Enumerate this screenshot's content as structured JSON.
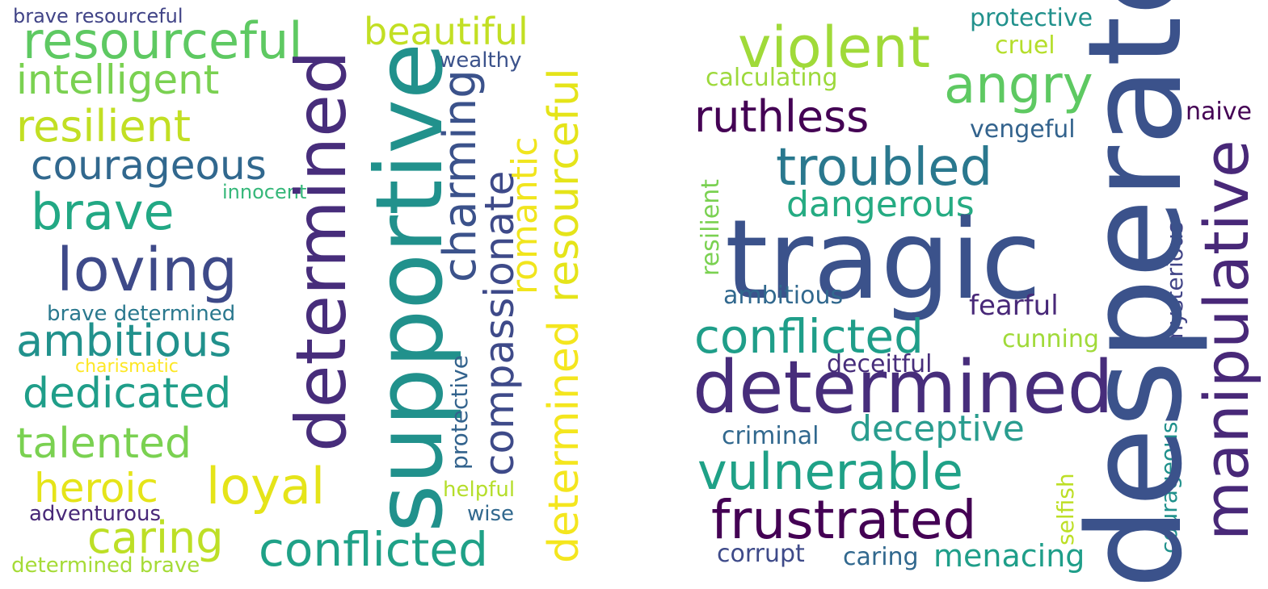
{
  "left_cloud": {
    "words": [
      {
        "text": "brave resourceful",
        "color": "#414487"
      },
      {
        "text": "resourceful",
        "color": "#5ec962"
      },
      {
        "text": "beautiful",
        "color": "#c2df23"
      },
      {
        "text": "wealthy",
        "color": "#3b528b"
      },
      {
        "text": "intelligent",
        "color": "#7ad151"
      },
      {
        "text": "resilient",
        "color": "#c2df23"
      },
      {
        "text": "courageous",
        "color": "#31688e"
      },
      {
        "text": "innocent",
        "color": "#35b779"
      },
      {
        "text": "brave",
        "color": "#22a884"
      },
      {
        "text": "loving",
        "color": "#3e4a89"
      },
      {
        "text": "brave determined",
        "color": "#2a788e"
      },
      {
        "text": "ambitious",
        "color": "#21918c"
      },
      {
        "text": "charismatic",
        "color": "#fde725"
      },
      {
        "text": "dedicated",
        "color": "#1f9e89"
      },
      {
        "text": "talented",
        "color": "#7ad151"
      },
      {
        "text": "heroic",
        "color": "#e5e419"
      },
      {
        "text": "loyal",
        "color": "#e5e419"
      },
      {
        "text": "adventurous",
        "color": "#482878"
      },
      {
        "text": "caring",
        "color": "#bddf26"
      },
      {
        "text": "determined brave",
        "color": "#a5db36"
      },
      {
        "text": "conflicted",
        "color": "#1fa187"
      },
      {
        "text": "helpful",
        "color": "#b5de2b"
      },
      {
        "text": "wise",
        "color": "#31688e"
      },
      {
        "text": "determined",
        "color": "#472d7b"
      },
      {
        "text": "supportive",
        "color": "#21918c"
      },
      {
        "text": "charming",
        "color": "#3b528b"
      },
      {
        "text": "compassionate",
        "color": "#3e4a89"
      },
      {
        "text": "protective",
        "color": "#33638d"
      },
      {
        "text": "romantic",
        "color": "#f1e51d"
      },
      {
        "text": "resourceful",
        "color": "#e5e419"
      },
      {
        "text": "determined",
        "color": "#f4e61e"
      }
    ]
  },
  "right_cloud": {
    "words": [
      {
        "text": "protective",
        "color": "#21918c"
      },
      {
        "text": "violent",
        "color": "#a0da39"
      },
      {
        "text": "cruel",
        "color": "#b5de2b"
      },
      {
        "text": "calculating",
        "color": "#9dd93b"
      },
      {
        "text": "angry",
        "color": "#5ec962"
      },
      {
        "text": "ruthless",
        "color": "#440154"
      },
      {
        "text": "vengeful",
        "color": "#33638d"
      },
      {
        "text": "naive",
        "color": "#440154"
      },
      {
        "text": "troubled",
        "color": "#2a788e"
      },
      {
        "text": "dangerous",
        "color": "#25ab82"
      },
      {
        "text": "tragic",
        "color": "#3b528b"
      },
      {
        "text": "ambitious",
        "color": "#31688e"
      },
      {
        "text": "fearful",
        "color": "#482878"
      },
      {
        "text": "conflicted",
        "color": "#1f9e89"
      },
      {
        "text": "cunning",
        "color": "#a0da39"
      },
      {
        "text": "deceitful",
        "color": "#472d7b"
      },
      {
        "text": "determined",
        "color": "#472d7b"
      },
      {
        "text": "criminal",
        "color": "#31688e"
      },
      {
        "text": "deceptive",
        "color": "#2a9d8f"
      },
      {
        "text": "vulnerable",
        "color": "#1fa187"
      },
      {
        "text": "frustrated",
        "color": "#440154"
      },
      {
        "text": "corrupt",
        "color": "#3e4a89"
      },
      {
        "text": "caring",
        "color": "#31688e"
      },
      {
        "text": "menacing",
        "color": "#1f9e89"
      },
      {
        "text": "resilient",
        "color": "#7ad151"
      },
      {
        "text": "mysterious",
        "color": "#414487"
      },
      {
        "text": "selfish",
        "color": "#bddf26"
      },
      {
        "text": "courageous",
        "color": "#21918c"
      },
      {
        "text": "desperate",
        "color": "#3b528b"
      },
      {
        "text": "manipulative",
        "color": "#482878"
      }
    ]
  }
}
